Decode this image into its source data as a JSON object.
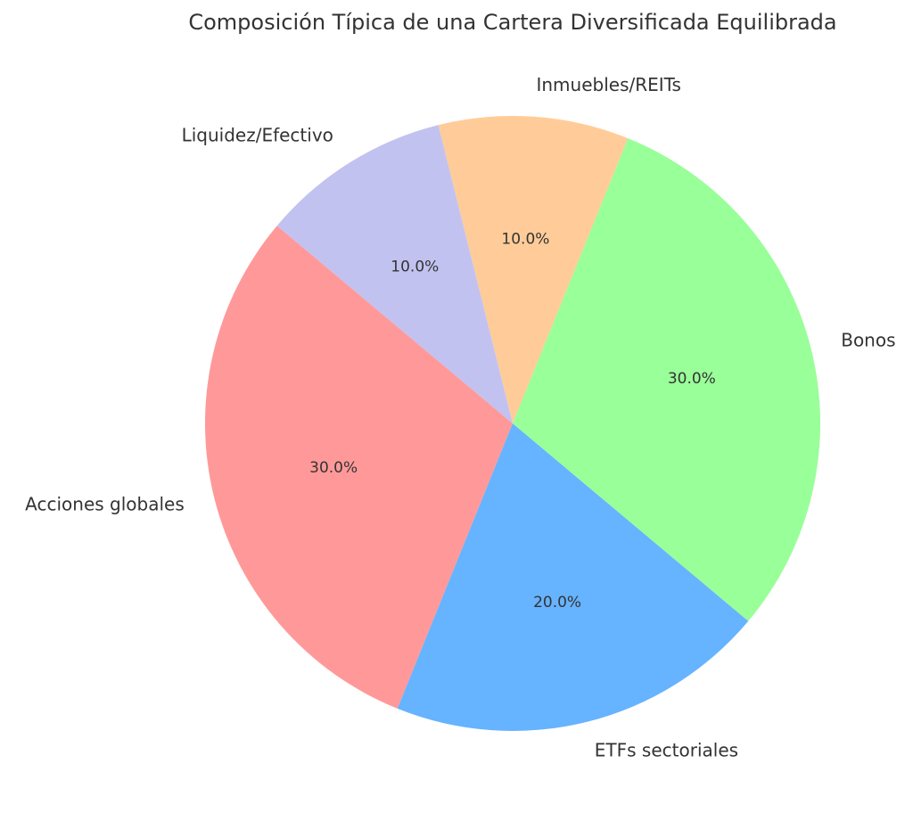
{
  "chart_data": {
    "type": "pie",
    "title": "Composición Típica de una Cartera Diversificada Equilibrada",
    "categories": [
      "Acciones globales",
      "ETFs sectoriales",
      "Bonos",
      "Inmuebles/REITs",
      "Liquidez/Efectivo"
    ],
    "values": [
      30,
      20,
      30,
      10,
      10
    ],
    "value_labels": [
      "30.0%",
      "20.0%",
      "30.0%",
      "10.0%",
      "10.0%"
    ],
    "colors": [
      "#ff9999",
      "#66b3ff",
      "#99ff99",
      "#ffcc99",
      "#c2c2f0"
    ]
  }
}
